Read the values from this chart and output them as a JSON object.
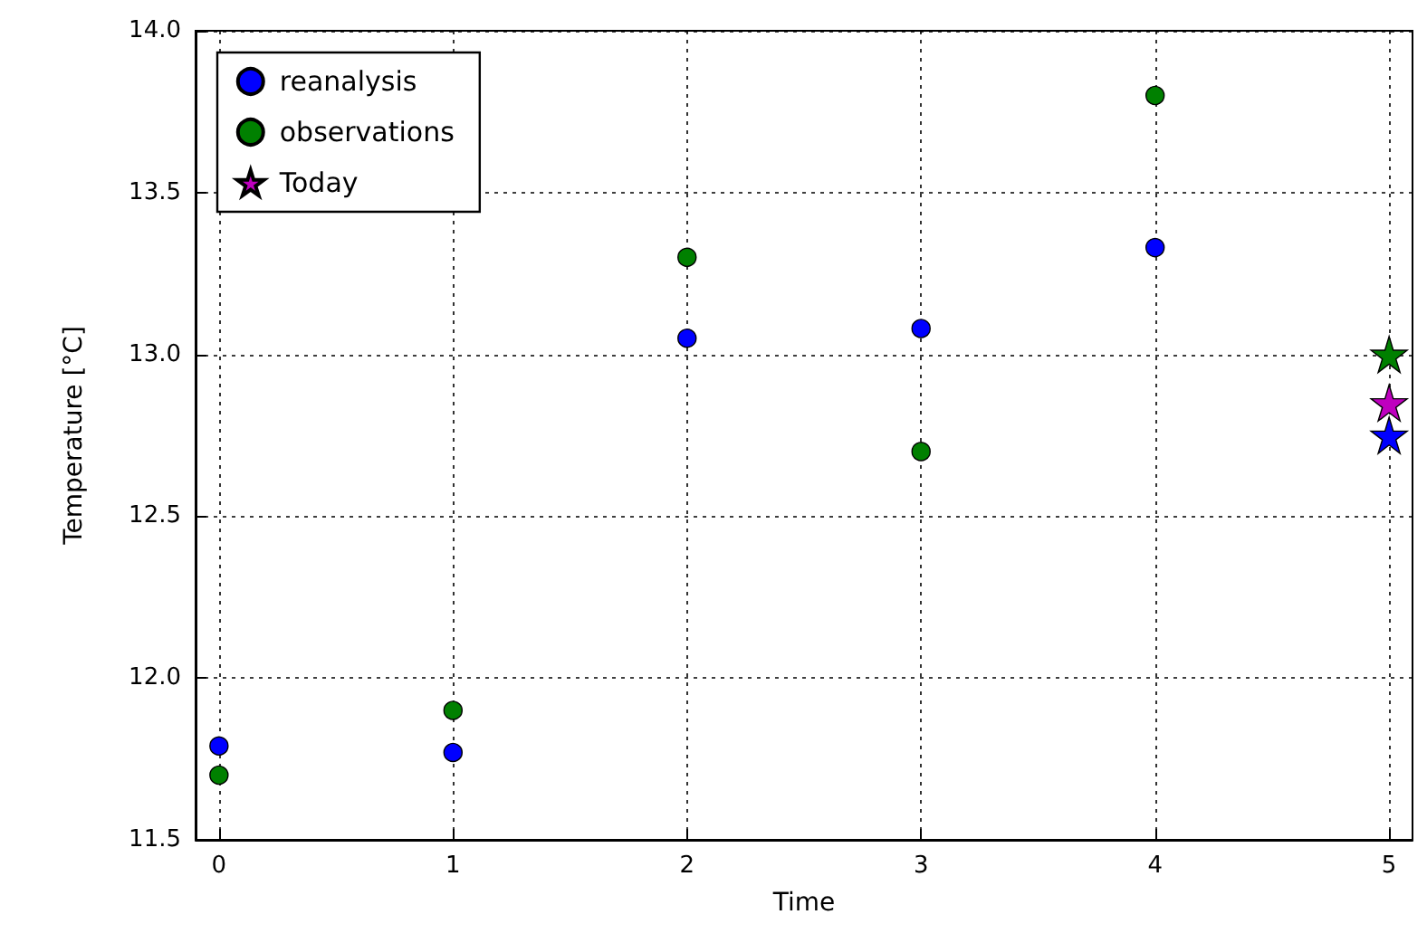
{
  "chart_data": {
    "type": "scatter",
    "xlabel": "Time",
    "ylabel": "Temperature [°C]",
    "x": [
      0,
      1,
      2,
      3,
      4,
      5
    ],
    "series": [
      {
        "name": "reanalysis",
        "color": "#0000ff",
        "values": [
          11.79,
          11.77,
          13.05,
          13.08,
          13.33,
          null
        ]
      },
      {
        "name": "observations",
        "color": "#008000",
        "values": [
          11.7,
          11.9,
          13.3,
          12.7,
          13.8,
          null
        ]
      },
      {
        "name": "Today",
        "color": "#bf00bf",
        "marker": "star",
        "values": [
          null,
          null,
          null,
          null,
          null,
          12.85
        ]
      },
      {
        "color": "#0000ff",
        "marker": "star",
        "values": [
          null,
          null,
          null,
          null,
          null,
          12.75
        ]
      },
      {
        "color": "#008000",
        "marker": "star",
        "values": [
          null,
          null,
          null,
          null,
          null,
          13.0
        ]
      }
    ],
    "xlim": [
      -0.1,
      5.1
    ],
    "xticks": [
      0,
      1,
      2,
      3,
      4,
      5
    ],
    "ylim": [
      11.5,
      14.0
    ],
    "yticks": [
      11.5,
      {
        "value": 12,
        "label": "12.0"
      },
      12.5,
      {
        "value": 13,
        "label": "13.0"
      },
      13.5,
      {
        "value": 14,
        "label": "14.0"
      }
    ],
    "grid": true,
    "legend": "top left",
    "marker": "circle"
  }
}
